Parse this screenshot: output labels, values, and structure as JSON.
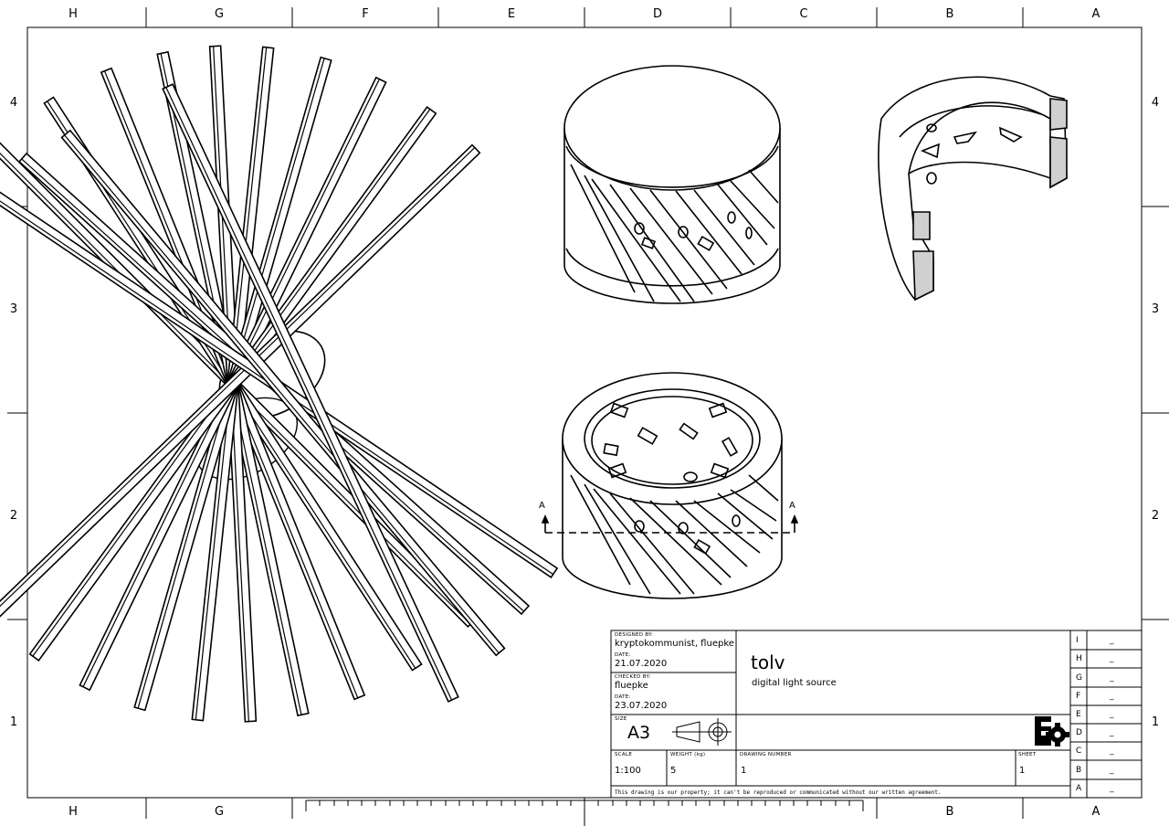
{
  "zones": {
    "columns": [
      "H",
      "G",
      "F",
      "E",
      "D",
      "C",
      "B",
      "A"
    ],
    "bottom_columns": [
      "H",
      "G",
      "B",
      "A"
    ],
    "rows": [
      "4",
      "3",
      "2",
      "1"
    ]
  },
  "section": {
    "label_left": "A",
    "label_right": "A"
  },
  "title_block": {
    "designed_by_label": "DESIGNED BY:",
    "designed_by": "kryptokommunist, fluepke",
    "date_label_1": "DATE:",
    "date_1": "21.07.2020",
    "checked_by_label": "CHECKED BY:",
    "checked_by": "fluepke",
    "date_label_2": "DATE:",
    "date_2": "23.07.2020",
    "size_label": "SIZE",
    "size": "A3",
    "scale_label": "SCALE",
    "scale": "1:100",
    "weight_label": "WEIGHT (kg)",
    "weight": "5",
    "drawing_number_label": "DRAWING NUMBER",
    "drawing_number": "1",
    "sheet_label": "SHEET",
    "sheet": "1",
    "title": "tolv",
    "subtitle": "digital light source",
    "disclaimer": "This drawing is our property; it can't be reproduced or communicated without our written agreement."
  },
  "revisions": [
    {
      "letter": "I",
      "value": "_"
    },
    {
      "letter": "H",
      "value": "_"
    },
    {
      "letter": "G",
      "value": "_"
    },
    {
      "letter": "F",
      "value": "_"
    },
    {
      "letter": "E",
      "value": "_"
    },
    {
      "letter": "D",
      "value": "_"
    },
    {
      "letter": "C",
      "value": "_"
    },
    {
      "letter": "B",
      "value": "_"
    },
    {
      "letter": "A",
      "value": "_"
    }
  ]
}
